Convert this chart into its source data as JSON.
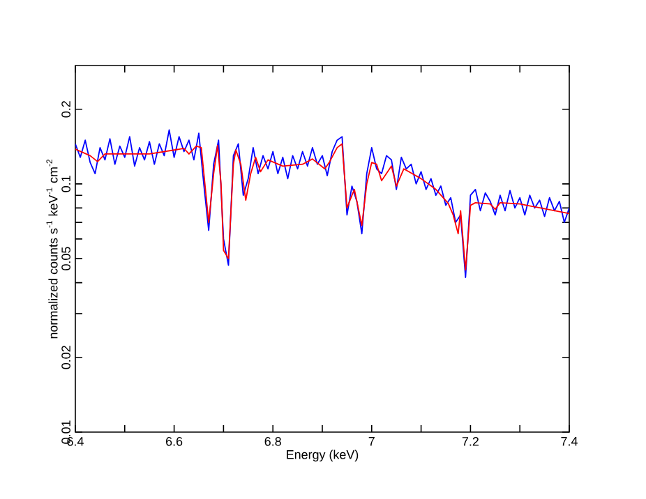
{
  "chart_data": {
    "type": "line",
    "xlabel": "Energy (keV)",
    "ylabel": "normalized counts s$^{-1}$ keV$^{-1}$ cm$^{-2}$",
    "log": "y",
    "xlim": [
      6.4,
      7.4
    ],
    "ylim": [
      0.01,
      0.3
    ],
    "xticks": [
      6.4,
      {
        "value": 6.5,
        "label": null
      },
      6.6,
      {
        "value": 6.7,
        "label": null
      },
      6.8,
      {
        "value": 6.9,
        "label": null
      },
      7,
      {
        "value": 7.1,
        "label": null
      },
      7.2,
      {
        "value": 7.3,
        "label": null
      },
      7.4
    ],
    "yticks": [
      0.01,
      0.02,
      {
        "value": 0.03,
        "label": null
      },
      {
        "value": 0.04,
        "label": null
      },
      0.05,
      {
        "value": 0.06,
        "label": null
      },
      {
        "value": 0.07,
        "label": null
      },
      {
        "value": 0.08,
        "label": null
      },
      {
        "value": 0.09,
        "label": null
      },
      0.1,
      0.2
    ],
    "series": [
      {
        "color": "#0000ff",
        "x": [
          6.4,
          6.41,
          6.42,
          6.43,
          6.44,
          6.45,
          6.46,
          6.47,
          6.48,
          6.49,
          6.5,
          6.51,
          6.52,
          6.53,
          6.54,
          6.55,
          6.56,
          6.57,
          6.58,
          6.59,
          6.6,
          6.61,
          6.62,
          6.63,
          6.64,
          6.65,
          6.66,
          6.67,
          6.68,
          6.69,
          6.7,
          6.71,
          6.72,
          6.73,
          6.74,
          6.75,
          6.76,
          6.77,
          6.78,
          6.79,
          6.8,
          6.81,
          6.82,
          6.83,
          6.84,
          6.85,
          6.86,
          6.87,
          6.88,
          6.89,
          6.9,
          6.91,
          6.92,
          6.93,
          6.94,
          6.95,
          6.96,
          6.97,
          6.98,
          6.99,
          7.0,
          7.01,
          7.02,
          7.03,
          7.04,
          7.05,
          7.06,
          7.07,
          7.08,
          7.09,
          7.1,
          7.11,
          7.12,
          7.13,
          7.14,
          7.15,
          7.16,
          7.17,
          7.18,
          7.19,
          7.2,
          7.21,
          7.22,
          7.23,
          7.24,
          7.25,
          7.26,
          7.27,
          7.28,
          7.29,
          7.3,
          7.31,
          7.32,
          7.33,
          7.34,
          7.35,
          7.36,
          7.37,
          7.38,
          7.39,
          7.4
        ],
        "values": [
          0.145,
          0.128,
          0.15,
          0.122,
          0.11,
          0.14,
          0.125,
          0.152,
          0.12,
          0.142,
          0.128,
          0.155,
          0.118,
          0.14,
          0.125,
          0.148,
          0.12,
          0.145,
          0.13,
          0.165,
          0.128,
          0.155,
          0.135,
          0.15,
          0.125,
          0.16,
          0.1,
          0.065,
          0.12,
          0.15,
          0.06,
          0.047,
          0.13,
          0.145,
          0.09,
          0.105,
          0.14,
          0.11,
          0.13,
          0.115,
          0.135,
          0.11,
          0.128,
          0.105,
          0.13,
          0.115,
          0.135,
          0.118,
          0.14,
          0.12,
          0.13,
          0.108,
          0.135,
          0.15,
          0.155,
          0.075,
          0.098,
          0.085,
          0.063,
          0.11,
          0.14,
          0.115,
          0.11,
          0.13,
          0.125,
          0.095,
          0.128,
          0.115,
          0.12,
          0.1,
          0.112,
          0.095,
          0.105,
          0.09,
          0.098,
          0.082,
          0.088,
          0.07,
          0.075,
          0.042,
          0.09,
          0.095,
          0.078,
          0.092,
          0.085,
          0.075,
          0.09,
          0.078,
          0.094,
          0.08,
          0.088,
          0.075,
          0.09,
          0.08,
          0.086,
          0.074,
          0.088,
          0.078,
          0.085,
          0.07,
          0.08
        ]
      },
      {
        "color": "#ff0000",
        "x": [
          6.4,
          6.43,
          6.445,
          6.46,
          6.55,
          6.62,
          6.63,
          6.645,
          6.655,
          6.67,
          6.68,
          6.688,
          6.695,
          6.7,
          6.71,
          6.72,
          6.725,
          6.735,
          6.745,
          6.755,
          6.765,
          6.775,
          6.79,
          6.82,
          6.86,
          6.88,
          6.905,
          6.915,
          6.93,
          6.94,
          6.95,
          6.96,
          6.965,
          6.98,
          6.99,
          7.0,
          7.01,
          7.02,
          7.04,
          7.05,
          7.065,
          7.1,
          7.13,
          7.155,
          7.165,
          7.175,
          7.18,
          7.19,
          7.195,
          7.2,
          7.21,
          7.24,
          7.25,
          7.26,
          7.3,
          7.4
        ],
        "values": [
          0.138,
          0.13,
          0.123,
          0.132,
          0.132,
          0.139,
          0.132,
          0.142,
          0.14,
          0.07,
          0.11,
          0.143,
          0.1,
          0.054,
          0.05,
          0.12,
          0.137,
          0.12,
          0.086,
          0.11,
          0.128,
          0.112,
          0.125,
          0.118,
          0.12,
          0.126,
          0.115,
          0.123,
          0.14,
          0.145,
          0.08,
          0.09,
          0.095,
          0.068,
          0.1,
          0.122,
          0.12,
          0.103,
          0.118,
          0.098,
          0.115,
          0.105,
          0.095,
          0.0835,
          0.075,
          0.063,
          0.078,
          0.045,
          0.06,
          0.082,
          0.084,
          0.083,
          0.079,
          0.084,
          0.083,
          0.076
        ]
      }
    ]
  }
}
